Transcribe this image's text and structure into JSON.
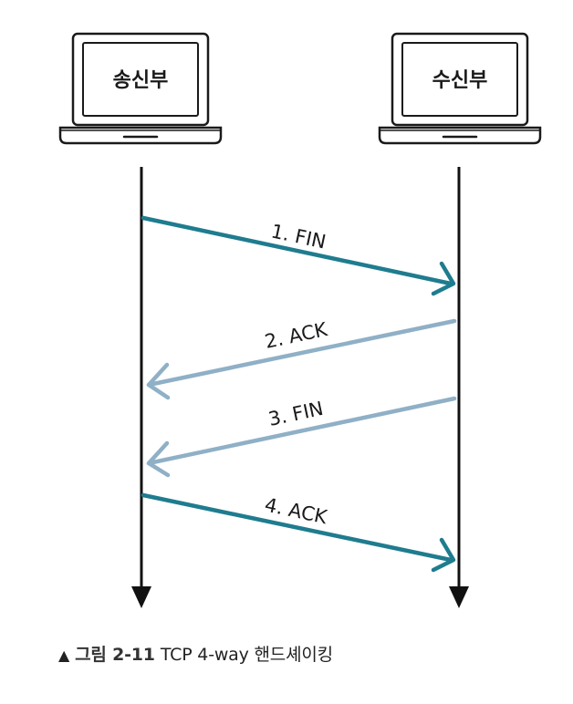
{
  "nodes": {
    "sender": {
      "label": "송신부"
    },
    "receiver": {
      "label": "수신부"
    }
  },
  "messages": [
    {
      "label": "1. FIN",
      "direction": "sender-to-receiver",
      "color": "#1f7c8f"
    },
    {
      "label": "2. ACK",
      "direction": "receiver-to-sender",
      "color": "#8fb0c6"
    },
    {
      "label": "3. FIN",
      "direction": "receiver-to-sender",
      "color": "#8fb0c6"
    },
    {
      "label": "4. ACK",
      "direction": "sender-to-receiver",
      "color": "#1f7c8f"
    }
  ],
  "caption": {
    "marker": "▲",
    "figure": "그림 2-11",
    "text": "TCP 4-way 핸드셰이킹"
  },
  "colors": {
    "lifeline": "#111111",
    "outline": "#1a1a1a"
  }
}
